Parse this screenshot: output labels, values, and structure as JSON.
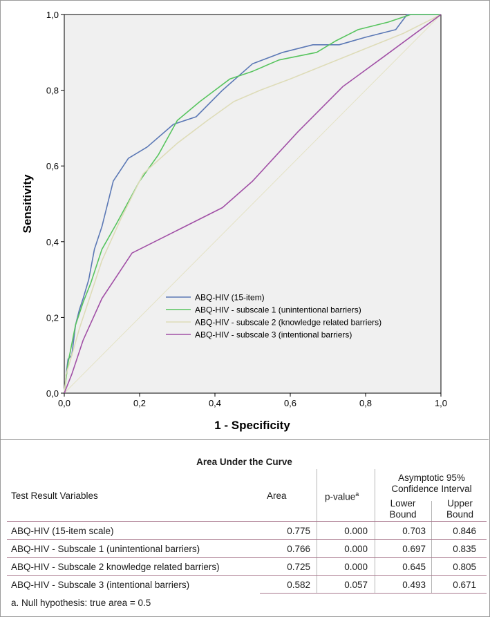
{
  "chart_data": {
    "type": "line",
    "xlabel": "1 - Specificity",
    "ylabel": "Sensitivity",
    "xlim": [
      0,
      1
    ],
    "ylim": [
      0,
      1
    ],
    "x_ticks": [
      "0,0",
      "0,2",
      "0,4",
      "0,6",
      "0,8",
      "1,0"
    ],
    "y_ticks": [
      "0,0",
      "0,2",
      "0,4",
      "0,6",
      "0,8",
      "1,0"
    ],
    "legend_position": "center-right",
    "series": [
      {
        "name": "ABQ-HIV (15-item)",
        "color": "#5b78b5",
        "points": [
          [
            0,
            0
          ],
          [
            0.005,
            0.05
          ],
          [
            0.01,
            0.09
          ],
          [
            0.02,
            0.1
          ],
          [
            0.03,
            0.18
          ],
          [
            0.04,
            0.22
          ],
          [
            0.05,
            0.25
          ],
          [
            0.065,
            0.3
          ],
          [
            0.08,
            0.38
          ],
          [
            0.1,
            0.44
          ],
          [
            0.13,
            0.56
          ],
          [
            0.17,
            0.62
          ],
          [
            0.22,
            0.65
          ],
          [
            0.29,
            0.71
          ],
          [
            0.35,
            0.73
          ],
          [
            0.42,
            0.8
          ],
          [
            0.5,
            0.87
          ],
          [
            0.58,
            0.9
          ],
          [
            0.66,
            0.92
          ],
          [
            0.73,
            0.92
          ],
          [
            0.8,
            0.94
          ],
          [
            0.88,
            0.96
          ],
          [
            0.91,
            1.0
          ],
          [
            1.0,
            1.0
          ]
        ]
      },
      {
        "name": "ABQ-HIV - subscale 1 (unintentional barriers)",
        "color": "#57c45e",
        "points": [
          [
            0,
            0
          ],
          [
            0.005,
            0.04
          ],
          [
            0.01,
            0.08
          ],
          [
            0.03,
            0.18
          ],
          [
            0.05,
            0.24
          ],
          [
            0.07,
            0.29
          ],
          [
            0.1,
            0.38
          ],
          [
            0.14,
            0.45
          ],
          [
            0.2,
            0.56
          ],
          [
            0.25,
            0.63
          ],
          [
            0.3,
            0.72
          ],
          [
            0.36,
            0.77
          ],
          [
            0.44,
            0.83
          ],
          [
            0.5,
            0.85
          ],
          [
            0.57,
            0.88
          ],
          [
            0.67,
            0.9
          ],
          [
            0.72,
            0.93
          ],
          [
            0.78,
            0.96
          ],
          [
            0.86,
            0.98
          ],
          [
            0.92,
            1.0
          ],
          [
            1.0,
            1.0
          ]
        ]
      },
      {
        "name": "ABQ-HIV - subscale 2 (knowledge related barriers)",
        "color": "#dedcb8",
        "points": [
          [
            0,
            0
          ],
          [
            0.005,
            0.05
          ],
          [
            0.02,
            0.1
          ],
          [
            0.04,
            0.17
          ],
          [
            0.07,
            0.26
          ],
          [
            0.1,
            0.35
          ],
          [
            0.15,
            0.46
          ],
          [
            0.21,
            0.58
          ],
          [
            0.3,
            0.66
          ],
          [
            0.38,
            0.72
          ],
          [
            0.45,
            0.77
          ],
          [
            0.52,
            0.8
          ],
          [
            0.6,
            0.83
          ],
          [
            0.7,
            0.87
          ],
          [
            0.8,
            0.91
          ],
          [
            0.9,
            0.95
          ],
          [
            1.0,
            1.0
          ]
        ]
      },
      {
        "name": "ABQ-HIV - subscale 3 (intentional barriers)",
        "color": "#a150a6",
        "points": [
          [
            0,
            0
          ],
          [
            0.02,
            0.05
          ],
          [
            0.05,
            0.14
          ],
          [
            0.1,
            0.25
          ],
          [
            0.18,
            0.37
          ],
          [
            0.3,
            0.43
          ],
          [
            0.42,
            0.49
          ],
          [
            0.5,
            0.56
          ],
          [
            0.62,
            0.69
          ],
          [
            0.74,
            0.81
          ],
          [
            0.85,
            0.89
          ],
          [
            1.0,
            1.0
          ]
        ]
      }
    ]
  },
  "auc_table": {
    "title": "Area Under the Curve",
    "headers": {
      "variable": "Test Result Variables",
      "area": "Area",
      "p_value": "p-value",
      "p_value_sup": "a",
      "ci_line1": "Asymptotic 95%",
      "ci_line2": "Confidence Interval",
      "lower1": "Lower",
      "lower2": "Bound",
      "upper1": "Upper",
      "upper2": "Bound"
    },
    "rows": [
      {
        "variable": "ABQ-HIV (15-item scale)",
        "area": "0.775",
        "p": "0.000",
        "lower": "0.703",
        "upper": "0.846"
      },
      {
        "variable": "ABQ-HIV - Subscale 1 (unintentional barriers)",
        "area": "0.766",
        "p": "0.000",
        "lower": "0.697",
        "upper": "0.835"
      },
      {
        "variable": "ABQ-HIV - Subscale 2 knowledge related barriers)",
        "area": "0.725",
        "p": "0.000",
        "lower": "0.645",
        "upper": "0.805"
      },
      {
        "variable": "ABQ-HIV - Subscale 3 (intentional barriers)",
        "area": "0.582",
        "p": "0.057",
        "lower": "0.493",
        "upper": "0.671"
      }
    ],
    "footnote": "a. Null hypothesis: true area = 0.5"
  }
}
